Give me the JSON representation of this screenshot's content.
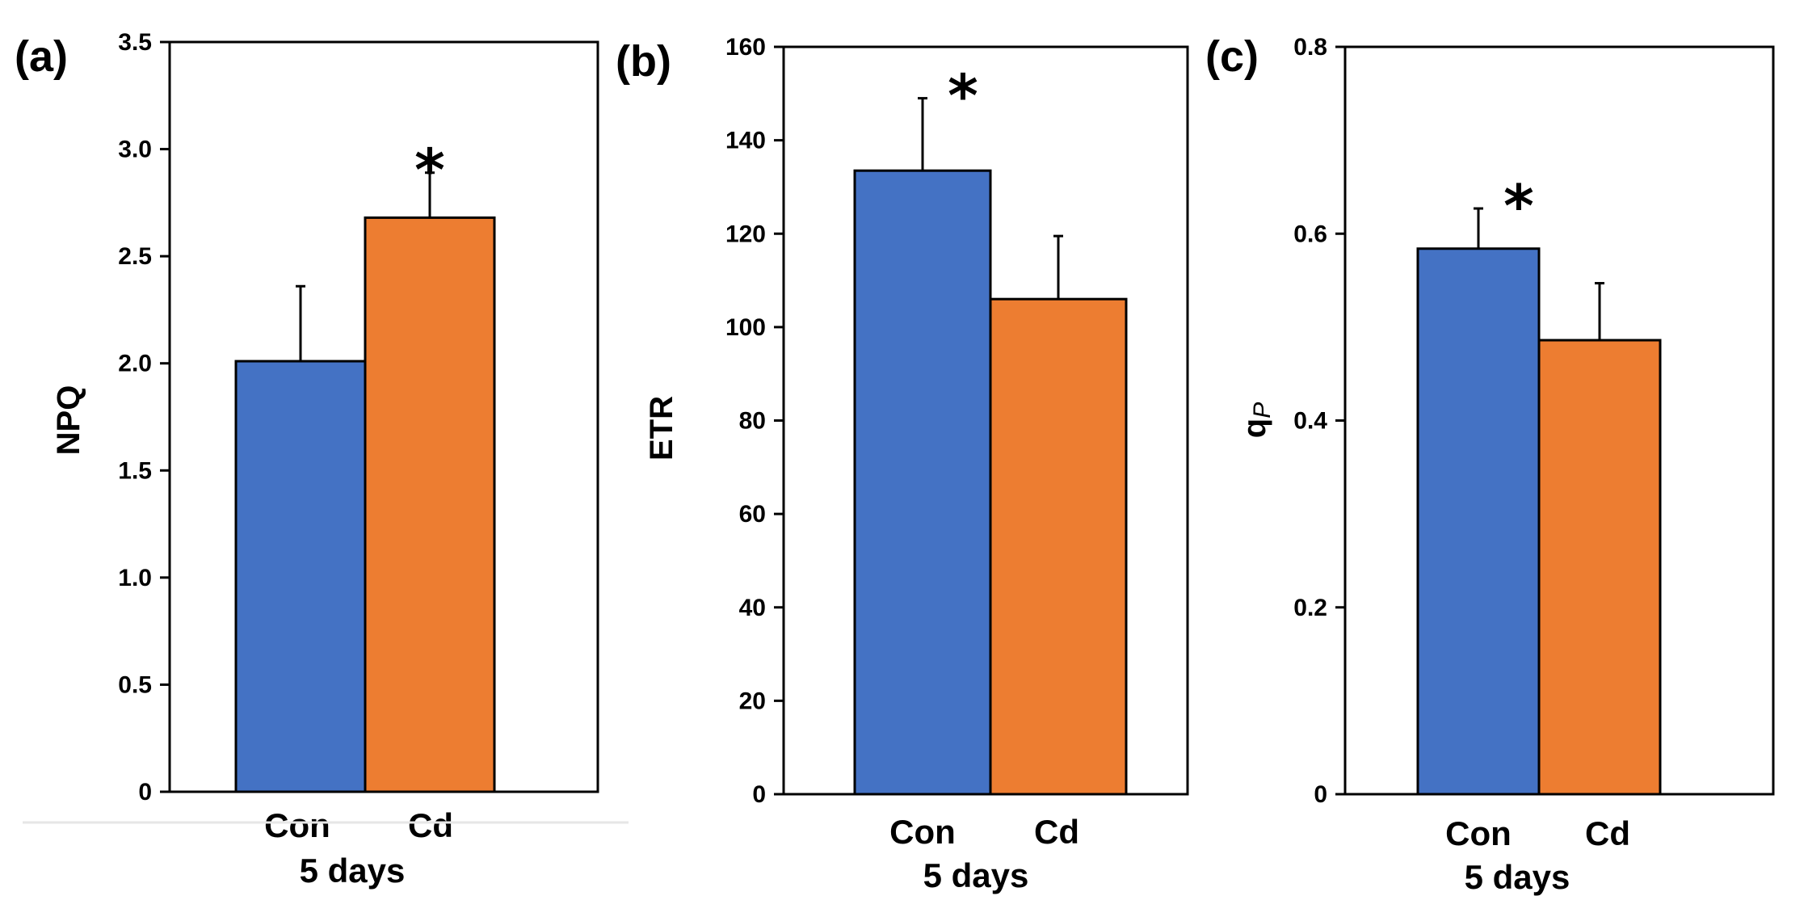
{
  "colors": {
    "con": "#4472C4",
    "cd": "#ED7D31",
    "axis": "#000000"
  },
  "chart_data": [
    {
      "type": "bar",
      "panel_label": "(a)",
      "title": "",
      "ylabel": "NPQ",
      "xlabel": "5 days",
      "categories": [
        "Con",
        "Cd"
      ],
      "values": [
        2.01,
        2.68
      ],
      "errors": [
        0.35,
        0.21
      ],
      "significance": [
        "",
        "*"
      ],
      "ylim": [
        0,
        3.5
      ],
      "yticks": [
        0,
        0.5,
        1.0,
        1.5,
        2.0,
        2.5,
        3.0,
        3.5
      ],
      "ytick_labels": [
        "0",
        "0.5",
        "1.0",
        "1.5",
        "2.0",
        "2.5",
        "3.0",
        "3.5"
      ]
    },
    {
      "type": "bar",
      "panel_label": "(b)",
      "title": "",
      "ylabel": "ETR",
      "xlabel": "5 days",
      "categories": [
        "Con",
        "Cd"
      ],
      "values": [
        133.5,
        106
      ],
      "errors": [
        15.5,
        13.5
      ],
      "significance": [
        "*",
        ""
      ],
      "ylim": [
        0,
        160
      ],
      "yticks": [
        0,
        20,
        40,
        60,
        80,
        100,
        120,
        140,
        160
      ],
      "ytick_labels": [
        "0",
        "20",
        "40",
        "60",
        "80",
        "100",
        "120",
        "140",
        "160"
      ]
    },
    {
      "type": "bar",
      "panel_label": "(c)",
      "title": "",
      "ylabel": "qP",
      "ylabel_main": "q",
      "ylabel_sub": "P",
      "xlabel": "5 days",
      "categories": [
        "Con",
        "Cd"
      ],
      "values": [
        0.584,
        0.486
      ],
      "errors": [
        0.043,
        0.061
      ],
      "significance": [
        "*",
        ""
      ],
      "ylim": [
        0,
        0.8
      ],
      "yticks": [
        0,
        0.2,
        0.4,
        0.6,
        0.8
      ],
      "ytick_labels": [
        "0",
        "0.2",
        "0.4",
        "0.6",
        "0.8"
      ]
    }
  ]
}
